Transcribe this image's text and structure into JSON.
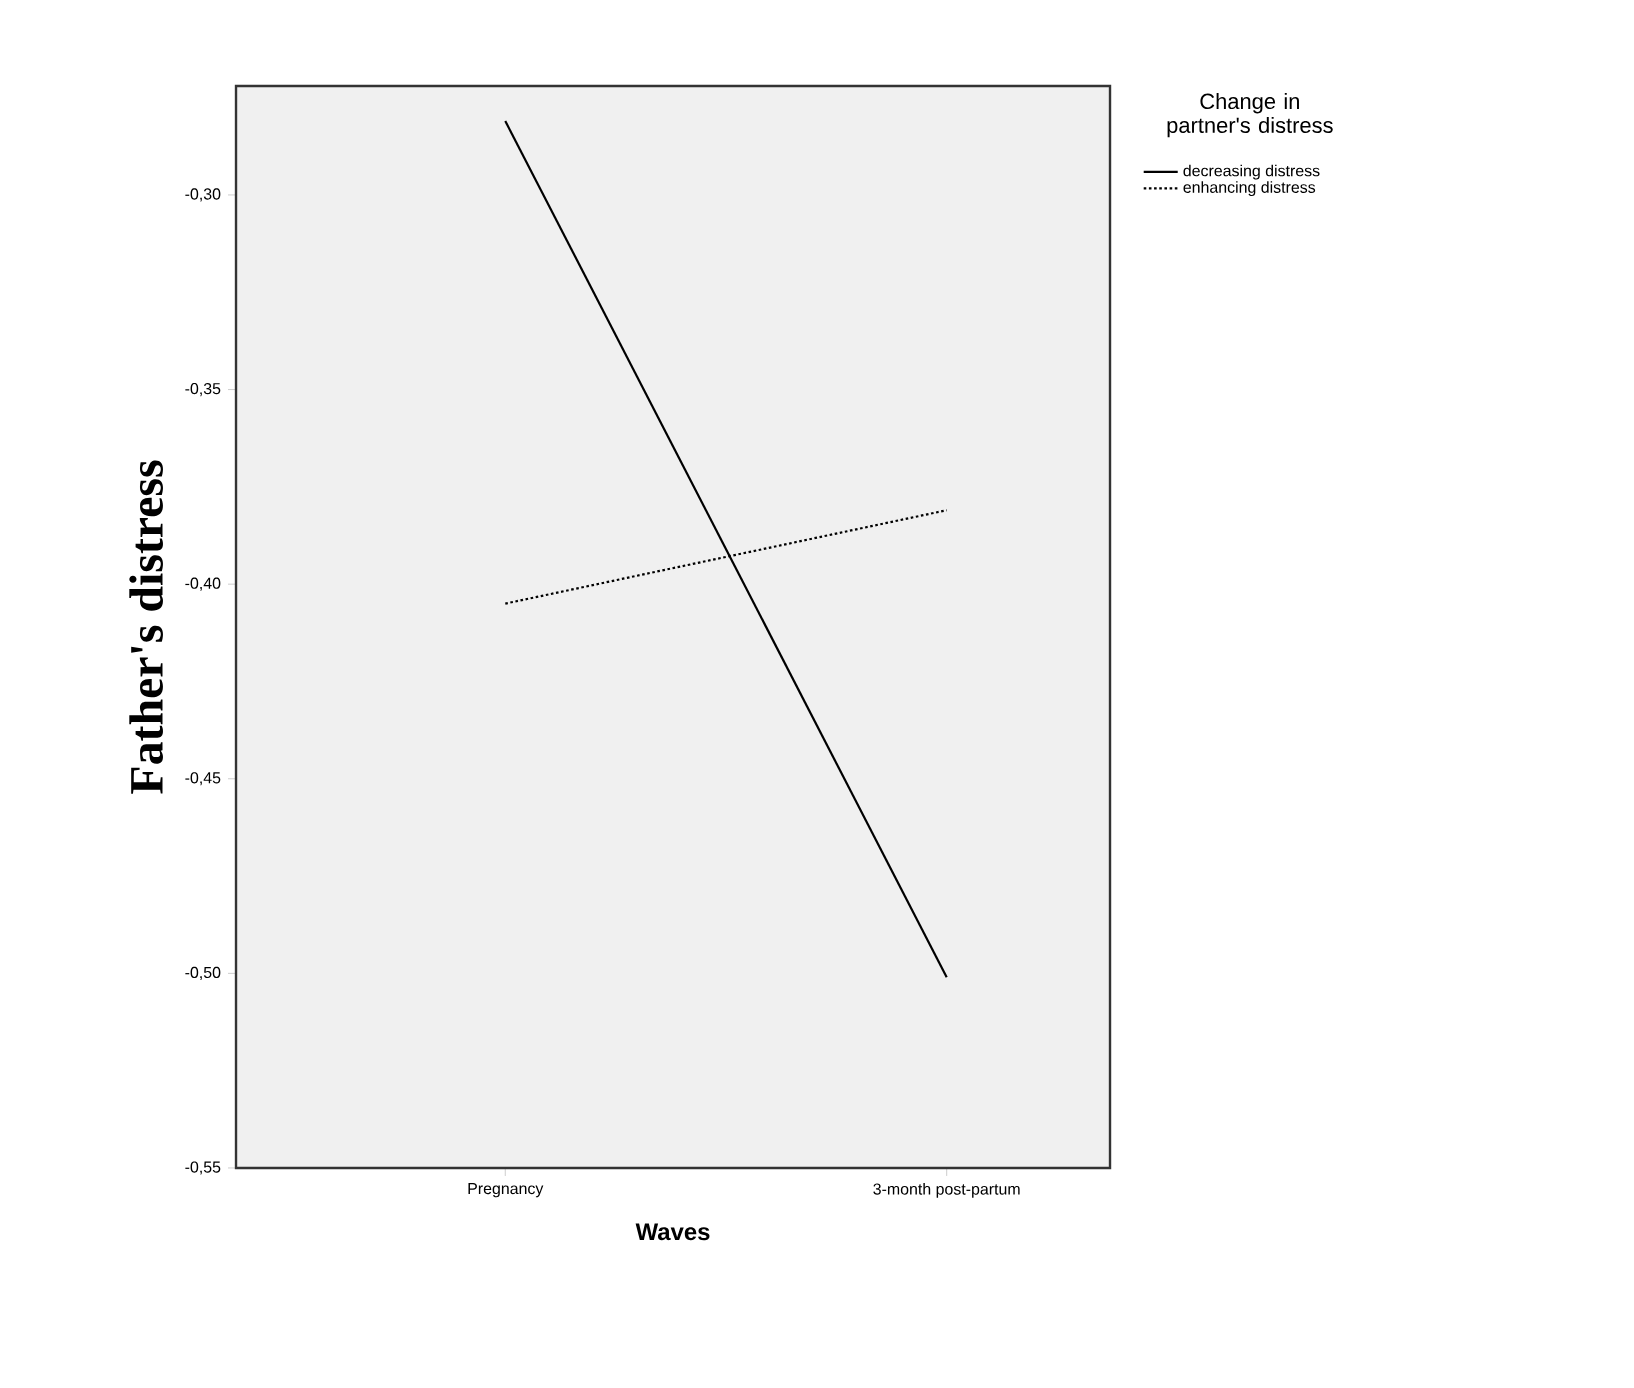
{
  "chart_data": {
    "type": "line",
    "xlabel": "Waves",
    "ylabel": "Father's distress",
    "legend_title": "Change in partner's distress",
    "legend": "top right",
    "categories": [
      "Pregnancy",
      "3-month post-partum"
    ],
    "ylim": [
      -0.55,
      -0.272
    ],
    "yticks": [
      {
        "value": -0.55,
        "label": "-0,55"
      },
      {
        "value": -0.5,
        "label": "-0,50"
      },
      {
        "value": -0.45,
        "label": "-0,45"
      },
      {
        "value": -0.4,
        "label": "-0,40"
      },
      {
        "value": -0.35,
        "label": "-0,35"
      },
      {
        "value": -0.3,
        "label": "-0,30"
      }
    ],
    "grid": false,
    "marker": "none",
    "series": [
      {
        "name": "decreasing distress",
        "color": "#000000",
        "line_style": "solid",
        "values": [
          -0.281,
          -0.501
        ]
      },
      {
        "name": "enhancing distress",
        "color": "#000000",
        "line_style": "dotted",
        "values": [
          -0.405,
          -0.381
        ]
      }
    ]
  }
}
